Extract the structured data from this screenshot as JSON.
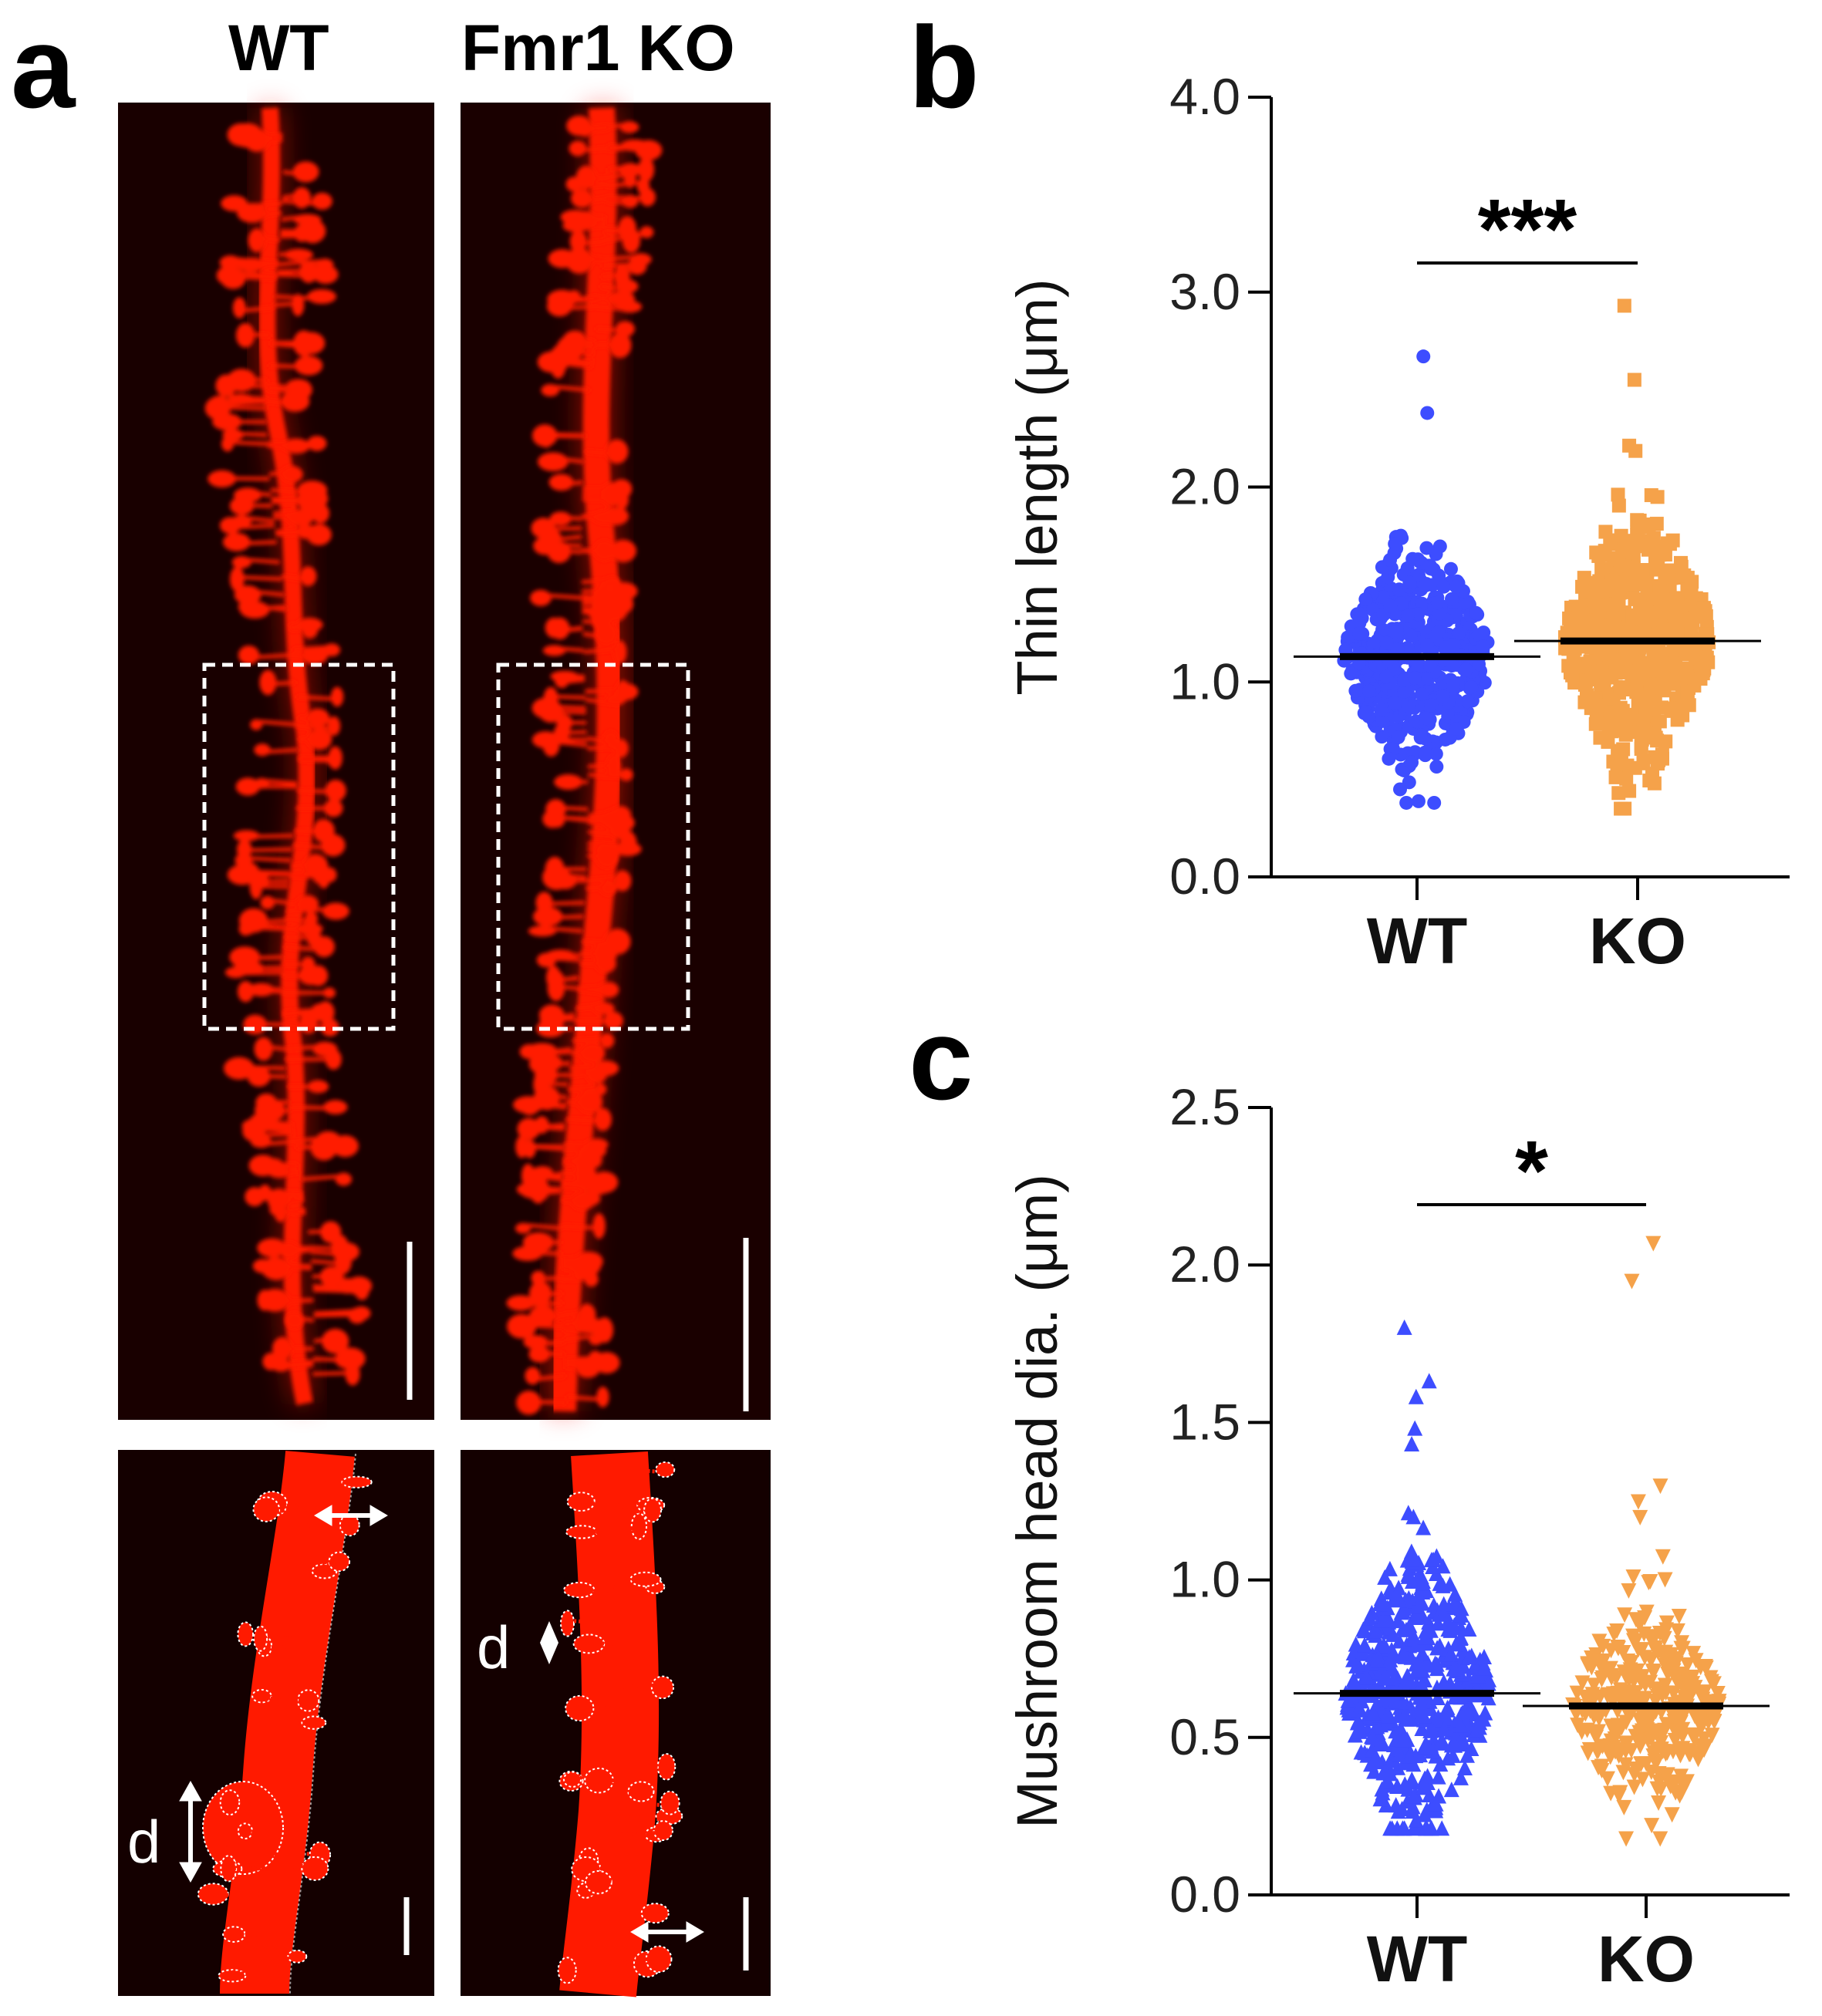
{
  "panels": {
    "a": {
      "letter": "a",
      "col_wt": "WT",
      "col_ko": "Fmr1 KO",
      "dlabel_wt": "d",
      "dlabel_ko": "d",
      "colors": {
        "bg": "#000000",
        "dendrite": "#ff1a00"
      }
    },
    "b": {
      "letter": "b"
    },
    "c": {
      "letter": "c"
    }
  },
  "chart_data": [
    {
      "type": "scatter",
      "ylabel": "Thin length (μm)",
      "categories": [
        "WT",
        "KO"
      ],
      "ylim": [
        0,
        4
      ],
      "yticks": [
        "0.0",
        "1.0",
        "2.0",
        "3.0",
        "4.0"
      ],
      "series": [
        {
          "name": "WT",
          "color": "#3d4dff",
          "marker": "circle",
          "mean": 1.13,
          "min": 0.38,
          "max": 2.67,
          "notable_points": [
            2.67,
            2.38,
            0.38
          ]
        },
        {
          "name": "KO",
          "color": "#f5a24a",
          "marker": "square",
          "mean": 1.21,
          "min": 0.35,
          "max": 2.93,
          "notable_points": [
            2.93,
            2.55,
            0.35
          ]
        }
      ],
      "significance": "***"
    },
    {
      "type": "scatter",
      "ylabel": "Mushroom head dia. (μm)",
      "categories": [
        "WT",
        "KO"
      ],
      "ylim": [
        0,
        2.5
      ],
      "yticks": [
        "0.0",
        "0.5",
        "1.0",
        "1.5",
        "2.0",
        "2.5"
      ],
      "series": [
        {
          "name": "WT",
          "color": "#3d4dff",
          "marker": "triangle-up",
          "mean": 0.64,
          "min": 0.21,
          "max": 1.8,
          "notable_points": [
            1.8,
            1.63,
            1.58,
            1.48,
            1.43
          ]
        },
        {
          "name": "KO",
          "color": "#f5a24a",
          "marker": "triangle-down",
          "mean": 0.6,
          "min": 0.18,
          "max": 2.07,
          "notable_points": [
            2.07,
            1.95,
            1.3,
            1.25,
            1.2
          ]
        }
      ],
      "significance": "*"
    }
  ]
}
